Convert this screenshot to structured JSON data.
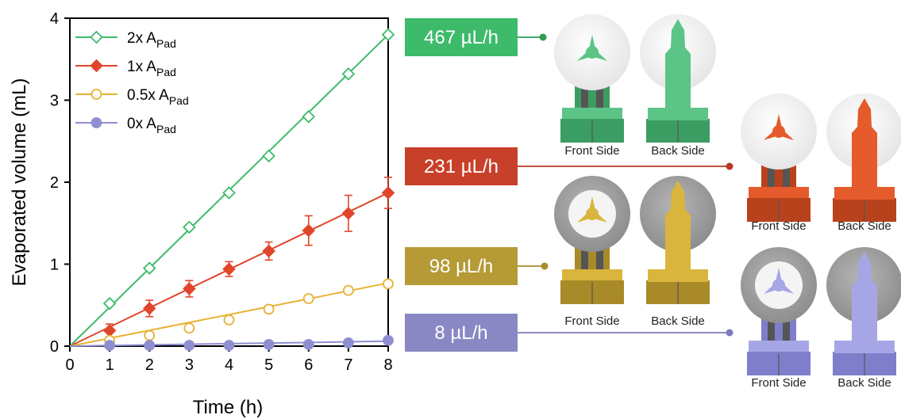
{
  "chart_data": {
    "type": "line",
    "xlabel": "Time (h)",
    "ylabel": "Evaporated volume (mL)",
    "xlim": [
      0,
      8
    ],
    "ylim": [
      0,
      4
    ],
    "xticks": [
      "0",
      "1",
      "2",
      "3",
      "4",
      "5",
      "6",
      "7",
      "8"
    ],
    "yticks": [
      "0",
      "1",
      "2",
      "3",
      "4"
    ],
    "grid": false,
    "legend_position": "top-left",
    "x": [
      0,
      1,
      2,
      3,
      4,
      5,
      6,
      7,
      8
    ],
    "series": [
      {
        "name_main": "2x A",
        "name_sub": "Pad",
        "color": "#3dbb6b",
        "marker": "diamond-open",
        "values": [
          0,
          0.52,
          0.95,
          1.45,
          1.87,
          2.32,
          2.8,
          3.32,
          3.8
        ],
        "errors": [
          0,
          0,
          0,
          0,
          0,
          0,
          0,
          0,
          0
        ],
        "fit": [
          0,
          3.8
        ]
      },
      {
        "name_main": "1x A",
        "name_sub": "Pad",
        "color": "#e0462a",
        "marker": "diamond-filled",
        "values": [
          0,
          0.19,
          0.46,
          0.7,
          0.94,
          1.16,
          1.41,
          1.62,
          1.87
        ],
        "errors": [
          0,
          0.08,
          0.1,
          0.1,
          0.09,
          0.11,
          0.18,
          0.22,
          0.19
        ],
        "fit": [
          0,
          1.87
        ]
      },
      {
        "name_main": "0.5x A",
        "name_sub": "Pad",
        "color": "#e8b233",
        "marker": "circle-open",
        "values": [
          0,
          0.07,
          0.13,
          0.22,
          0.32,
          0.45,
          0.58,
          0.68,
          0.76
        ],
        "errors": [
          0,
          0,
          0,
          0,
          0,
          0,
          0,
          0,
          0
        ],
        "fit": [
          0,
          0.77
        ]
      },
      {
        "name_main": "0x A",
        "name_sub": "Pad",
        "color": "#8f8ed0",
        "marker": "circle-filled",
        "values": [
          0,
          0.01,
          0.01,
          0.01,
          0.01,
          0.02,
          0.02,
          0.04,
          0.07
        ],
        "errors": [
          0,
          0,
          0,
          0,
          0,
          0,
          0,
          0,
          0
        ],
        "fit": [
          0,
          0.06
        ]
      }
    ]
  },
  "callouts": [
    {
      "label": "467 µL/h",
      "color": "#3dbb6b",
      "dot": "#2d9e52"
    },
    {
      "label": "231 µL/h",
      "color": "#c8402a",
      "dot": "#b8381e"
    },
    {
      "label": "98 µL/h",
      "color": "#b59a36",
      "dot": "#a88d2c"
    },
    {
      "label": "8 µL/h",
      "color": "#8a88c4",
      "dot": "#7d7bbc"
    }
  ],
  "devices": [
    {
      "color": "#5cc487",
      "dark": "#3c9d63",
      "pad": "#f2f2f2",
      "front": "Front Side",
      "back": "Back Side"
    },
    {
      "color": "#e55b2b",
      "dark": "#b8421c",
      "pad": "#f2f2f2",
      "front": "Front Side",
      "back": "Back Side"
    },
    {
      "color": "#d9b53e",
      "dark": "#a88a28",
      "pad": "#a2a2a2",
      "front": "Front Side",
      "back": "Back Side"
    },
    {
      "color": "#a6a6e6",
      "dark": "#7e7ecb",
      "pad": "#a2a2a2",
      "front": "Front Side",
      "back": "Back Side"
    }
  ]
}
